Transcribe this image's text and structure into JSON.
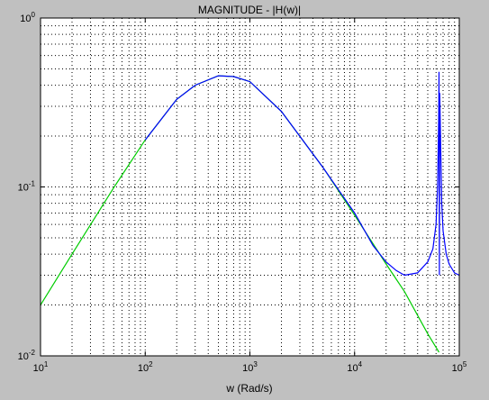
{
  "chart_data": {
    "type": "line",
    "title": "MAGNITUDE - |H(w)|",
    "xlabel": "w (Rad/s)",
    "ylabel": "",
    "x_scale": "log",
    "y_scale": "log",
    "xlim": [
      10,
      100000
    ],
    "ylim": [
      0.01,
      1
    ],
    "grid": true,
    "x_ticks": [
      {
        "base": "10",
        "exp": "1"
      },
      {
        "base": "10",
        "exp": "2"
      },
      {
        "base": "10",
        "exp": "3"
      },
      {
        "base": "10",
        "exp": "4"
      },
      {
        "base": "10",
        "exp": "5"
      }
    ],
    "y_ticks": [
      {
        "base": "10",
        "exp": "-2"
      },
      {
        "base": "10",
        "exp": "-1"
      },
      {
        "base": "10",
        "exp": "0"
      }
    ],
    "series": [
      {
        "color": "#00cc00",
        "x": [
          10,
          20,
          50,
          100,
          200,
          300,
          500,
          700,
          1000,
          2000,
          5000,
          10000,
          20000,
          30000,
          50000,
          64000
        ],
        "y": [
          0.02,
          0.04,
          0.099,
          0.19,
          0.33,
          0.4,
          0.455,
          0.45,
          0.42,
          0.28,
          0.13,
          0.068,
          0.035,
          0.024,
          0.0135,
          0.0105
        ]
      },
      {
        "color": "#0000ff",
        "x": [
          100,
          200,
          300,
          500,
          700,
          1000,
          2000,
          5000,
          10000,
          15000,
          20000,
          25000,
          30000,
          40000,
          50000,
          56000,
          60000,
          62000,
          63500,
          64000,
          64500,
          65000,
          66000,
          68000,
          70000,
          75000,
          80000,
          90000,
          100000
        ],
        "y": [
          0.19,
          0.33,
          0.4,
          0.455,
          0.45,
          0.42,
          0.28,
          0.13,
          0.07,
          0.045,
          0.036,
          0.032,
          0.03,
          0.031,
          0.036,
          0.043,
          0.06,
          0.1,
          0.25,
          0.48,
          0.03,
          0.36,
          0.22,
          0.08,
          0.055,
          0.04,
          0.035,
          0.031,
          0.03
        ]
      }
    ]
  }
}
